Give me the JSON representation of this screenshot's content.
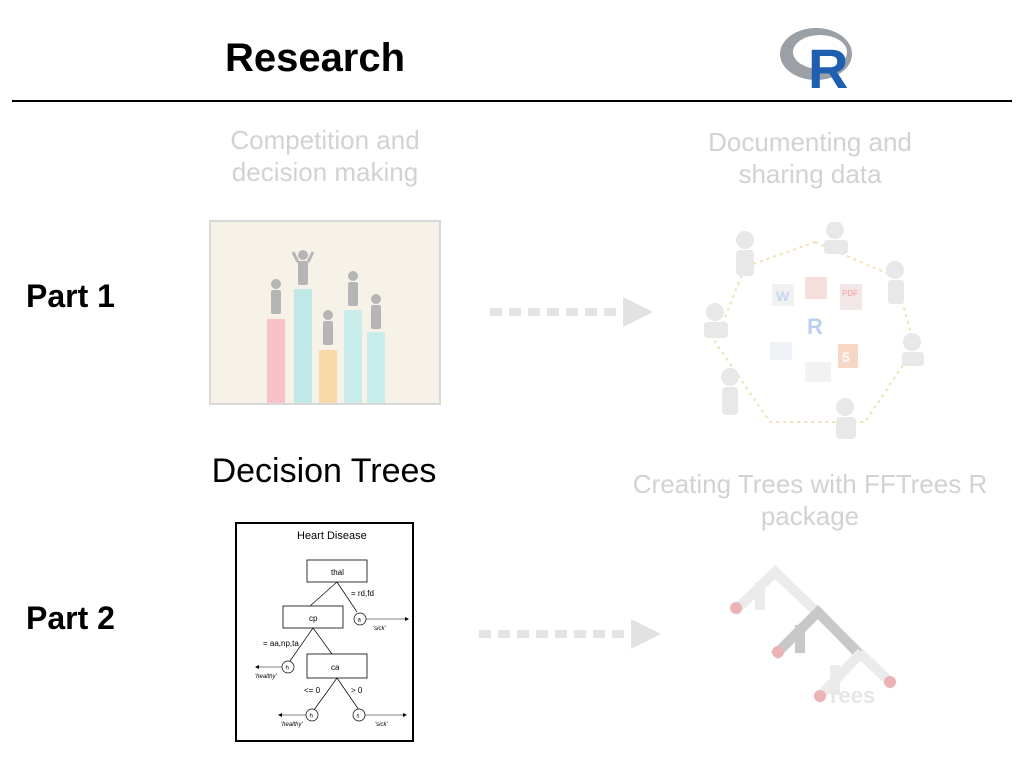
{
  "header": {
    "title": "Research",
    "logo": {
      "label": "R",
      "icon": "r-logo"
    }
  },
  "part1": {
    "label": "Part 1",
    "left_caption": "Competition and\ndecision making",
    "right_caption": "Documenting and\nsharing data",
    "right_icon_labels": [
      "R",
      "W",
      "PDF",
      "5",
      "HTML"
    ]
  },
  "part2": {
    "label": "Part 2",
    "left_heading": "Decision Trees",
    "right_caption": "Creating Trees with FFTrees R\npackage",
    "logo_text": "rees"
  },
  "tree": {
    "title": "Heart Disease",
    "nodes": {
      "thal": "thal",
      "cp": "cp",
      "ca": "ca"
    },
    "edges": {
      "thal_right": "= rd,fd",
      "cp_left": "= aa,np,ta",
      "ca_left": "<= 0",
      "ca_right": "> 0"
    },
    "leaves": {
      "a": "a",
      "h": "h",
      "s": "s"
    },
    "outcomes": {
      "sick": "'sick'",
      "healthy": "'healthy'"
    }
  },
  "colors": {
    "text_faded": "#d2d2d2",
    "arrow": "#e2e2e2",
    "r_blue": "#1f5fb0"
  }
}
